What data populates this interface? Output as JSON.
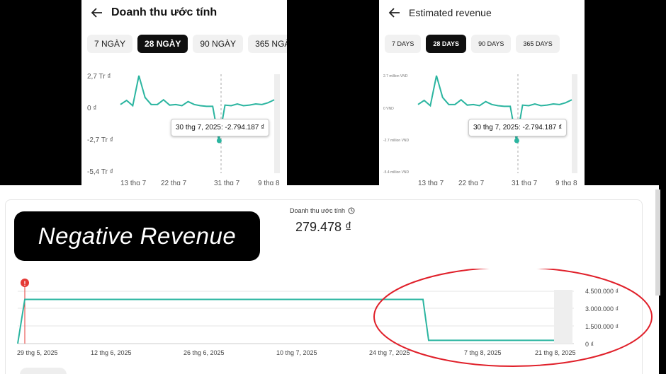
{
  "left_panel": {
    "title": "Doanh thu ước tính",
    "chips": [
      {
        "label": "7 NGÀY",
        "active": false
      },
      {
        "label": "28 NGÀY",
        "active": true
      },
      {
        "label": "90 NGÀY",
        "active": false
      },
      {
        "label": "365 NGÀY",
        "active": false
      }
    ],
    "y_ticks": [
      "2,7 Tr ₫",
      "0 ₫",
      "-2,7 Tr ₫",
      "-5,4 Tr ₫"
    ],
    "x_ticks": [
      "13 thg 7",
      "22 thg 7",
      "31 thg 7",
      "9 thg 8"
    ],
    "tooltip": "30 thg 7, 2025: -2.794.187 ₫"
  },
  "right_panel": {
    "title": "Estimated revenue",
    "chips": [
      {
        "label": "7 DAYS",
        "active": false
      },
      {
        "label": "28 DAYS",
        "active": true
      },
      {
        "label": "90 DAYS",
        "active": false
      },
      {
        "label": "365 DAYS",
        "active": false
      }
    ],
    "y_ticks": [
      "2.7 million VND",
      "0 VND",
      "-2.7 million VND",
      "-5.4 million VND"
    ],
    "x_ticks": [
      "13 thg 7",
      "22 thg 7",
      "31 thg 7",
      "9 thg 8"
    ],
    "tooltip": "30 thg 7, 2025: -2.794.187 ₫"
  },
  "daily_series": [
    250000,
    600000,
    150000,
    2700000,
    850000,
    250000,
    250000,
    650000,
    200000,
    250000,
    150000,
    500000,
    250000,
    150000,
    100000,
    100000,
    -2794187,
    200000,
    150000,
    300000,
    150000,
    200000,
    300000,
    250000,
    400000,
    650000
  ],
  "banner": {
    "text": "Negative Revenue"
  },
  "metric": {
    "label": "Doanh thu ước tính",
    "value": "279.478 ₫"
  },
  "main_chart": {
    "y_ticks": [
      "4.500.000 ₫",
      "3.000.000 ₫",
      "1.500.000 ₫",
      "0 ₫"
    ],
    "x_ticks": [
      "29 thg 5, 2025",
      "12 thg 6, 2025",
      "26 thg 6, 2025",
      "10 thg 7, 2025",
      "24 thg 7, 2025",
      "7 thg 8, 2025",
      "21 thg 8, 2025"
    ],
    "alert_icon": "!",
    "cumulative": [
      0,
      3800000,
      3800000,
      3800000,
      3800000,
      3800000,
      3800000,
      3800000,
      3800000,
      279478,
      279478,
      279478,
      279478
    ]
  },
  "colors": {
    "line": "#2bb5a0",
    "alert": "#e53935",
    "annotation": "#e0202a"
  }
}
